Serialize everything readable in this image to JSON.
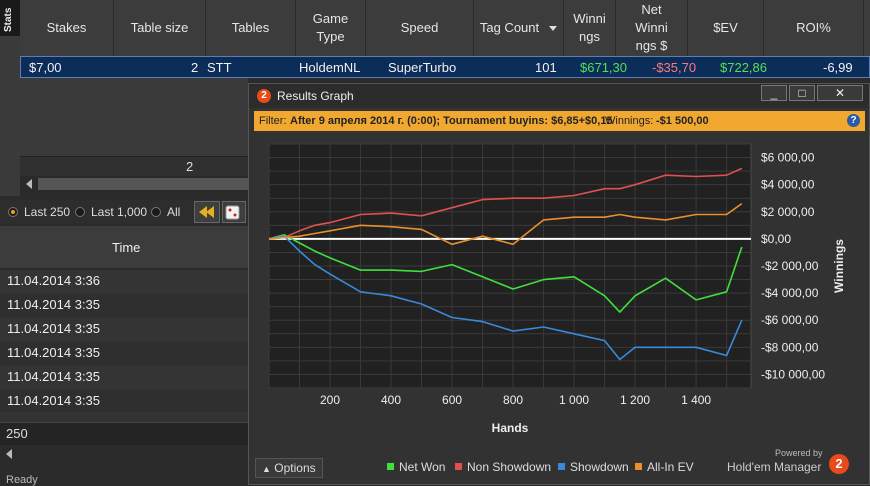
{
  "stats_tab": {
    "label": "Stats"
  },
  "table": {
    "headers": [
      "Stakes",
      "Table size",
      "Tables",
      "Game Type",
      "Speed",
      "Tag Count",
      "Winnings",
      "Net Winnings $",
      "$EV",
      "ROI%"
    ],
    "header_lines": [
      [
        "Stakes"
      ],
      [
        "Table size"
      ],
      [
        "Tables"
      ],
      [
        "Game",
        "Type"
      ],
      [
        "Speed"
      ],
      [
        "Tag Count"
      ],
      [
        "Winni",
        "ngs"
      ],
      [
        "Net",
        "Winni",
        "ngs $"
      ],
      [
        "$EV"
      ],
      [
        "ROI%"
      ]
    ],
    "row": {
      "stakes": "$7,00",
      "table_size": "2",
      "tables": "STT",
      "game_type": "HoldemNL",
      "speed": "SuperTurbo",
      "tag_count": "101",
      "winnings": "$671,30",
      "net_winnings": "-$35,70",
      "ev": "$722,86",
      "roi": "-6,99"
    },
    "footer_total": "2"
  },
  "colors": {
    "positive": "#52e052",
    "negative": "#ff7a7a",
    "filter_bar": "#f0a830",
    "selected_row": "#0c2c5a"
  },
  "session_filter": {
    "options": [
      "Last 250",
      "Last 1,000",
      "All"
    ],
    "selected": "Last 250"
  },
  "sessions": {
    "column": "Time",
    "rows": [
      "11.04.2014 3:36",
      "11.04.2014 3:35",
      "11.04.2014 3:35",
      "11.04.2014 3:35",
      "11.04.2014 3:35",
      "11.04.2014 3:35"
    ]
  },
  "bottom_input": {
    "value": "250"
  },
  "status": {
    "text": "Ready"
  },
  "results_graph": {
    "title": "Results Graph",
    "app_badge": "2",
    "window_buttons": [
      "_",
      "□",
      "✕"
    ],
    "filter_label": "Filter:",
    "filter_text": "After 9 апреля 2014 г. (0:00); Tournament buyins: $6,85+$0,15",
    "filter_winnings_label": "Winnings:",
    "filter_winnings_value": "-$1 500,00",
    "options_label": "Options",
    "powered_by": "Powered by",
    "brand": "Hold'em Manager",
    "brand_badge": "2"
  },
  "chart_data": {
    "type": "line",
    "xlabel": "Hands",
    "ylabel": "Winnings",
    "xlim": [
      0,
      1580
    ],
    "ylim": [
      -11000,
      7000
    ],
    "x_ticks": [
      200,
      400,
      600,
      800,
      1000,
      1200,
      1400
    ],
    "x_tick_labels": [
      "200",
      "400",
      "600",
      "800",
      "1 000",
      "1 200",
      "1 400"
    ],
    "y_ticks": [
      6000,
      4000,
      2000,
      0,
      -2000,
      -4000,
      -6000,
      -8000,
      -10000
    ],
    "y_tick_labels": [
      "$6 000,00",
      "$4 000,00",
      "$2 000,00",
      "$0,00",
      "-$2 000,00",
      "-$4 000,00",
      "-$6 000,00",
      "-$8 000,00",
      "-$10 000,00"
    ],
    "grid": true,
    "legend_position": "bottom",
    "x": [
      0,
      50,
      100,
      150,
      200,
      300,
      400,
      500,
      600,
      700,
      800,
      900,
      1000,
      1100,
      1150,
      1200,
      1300,
      1400,
      1500,
      1550
    ],
    "series": [
      {
        "name": "Net Won",
        "color": "#3ee03e",
        "values": [
          0,
          300,
          -300,
          -900,
          -1400,
          -2300,
          -2300,
          -2400,
          -1900,
          -2800,
          -3700,
          -3000,
          -2800,
          -4200,
          -5400,
          -4200,
          -2900,
          -4500,
          -3900,
          -600
        ]
      },
      {
        "name": "Non Showdown",
        "color": "#e05050",
        "values": [
          0,
          100,
          600,
          1000,
          1200,
          1800,
          1900,
          1700,
          2300,
          2900,
          3000,
          3000,
          3200,
          3700,
          3700,
          4000,
          4700,
          4600,
          4700,
          5200
        ]
      },
      {
        "name": "Showdown",
        "color": "#3a8ad8",
        "values": [
          0,
          200,
          -900,
          -1900,
          -2600,
          -3900,
          -4200,
          -4800,
          -5800,
          -6100,
          -6800,
          -6500,
          -7000,
          -7500,
          -8900,
          -8000,
          -8000,
          -8000,
          -8600,
          -6000
        ]
      },
      {
        "name": "All-In EV",
        "color": "#e8902c",
        "values": [
          0,
          100,
          200,
          400,
          600,
          1000,
          900,
          700,
          -400,
          200,
          -400,
          1400,
          1600,
          1600,
          1800,
          1600,
          1400,
          1800,
          1800,
          2600
        ]
      }
    ]
  }
}
